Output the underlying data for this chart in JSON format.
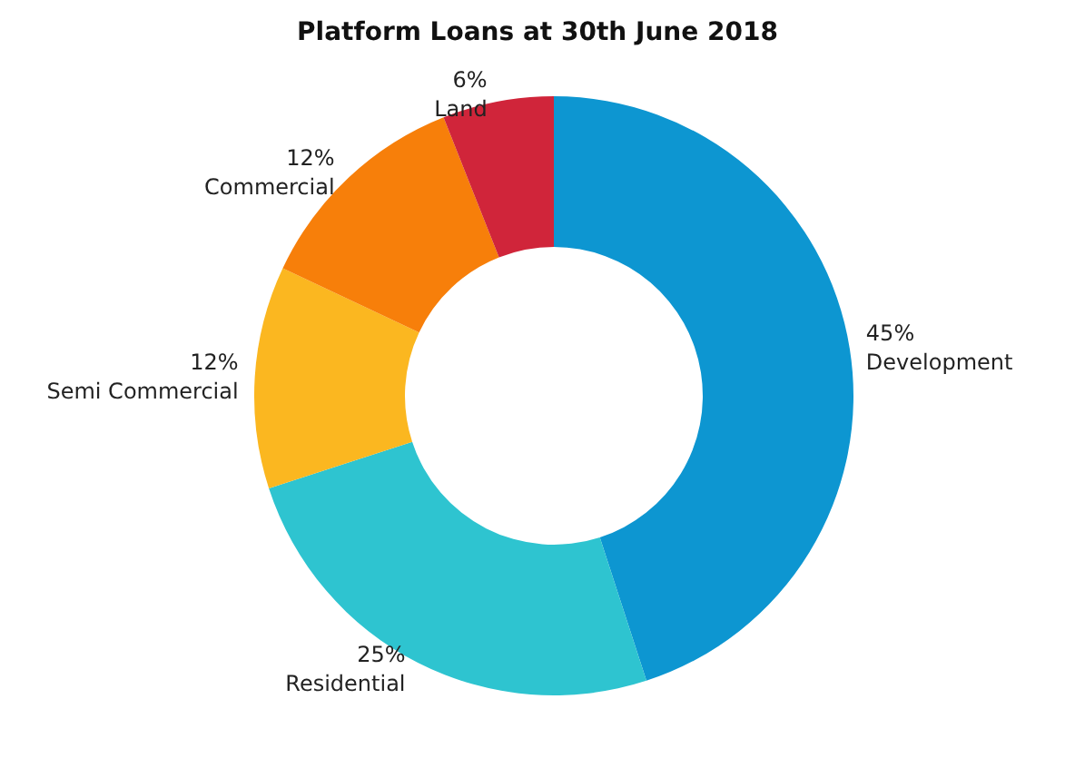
{
  "chart_data": {
    "type": "donut",
    "title": "Platform Loans at 30th June 2018",
    "categories": [
      "Development",
      "Residential",
      "Semi Commercial",
      "Commercial",
      "Land"
    ],
    "values": [
      45,
      25,
      12,
      12,
      6
    ],
    "value_labels": [
      "45%",
      "25%",
      "12%",
      "12%",
      "6%"
    ],
    "colors": [
      "#0d96d1",
      "#2ec4d0",
      "#fbb720",
      "#f77f0a",
      "#d0253a"
    ],
    "legend": false
  }
}
